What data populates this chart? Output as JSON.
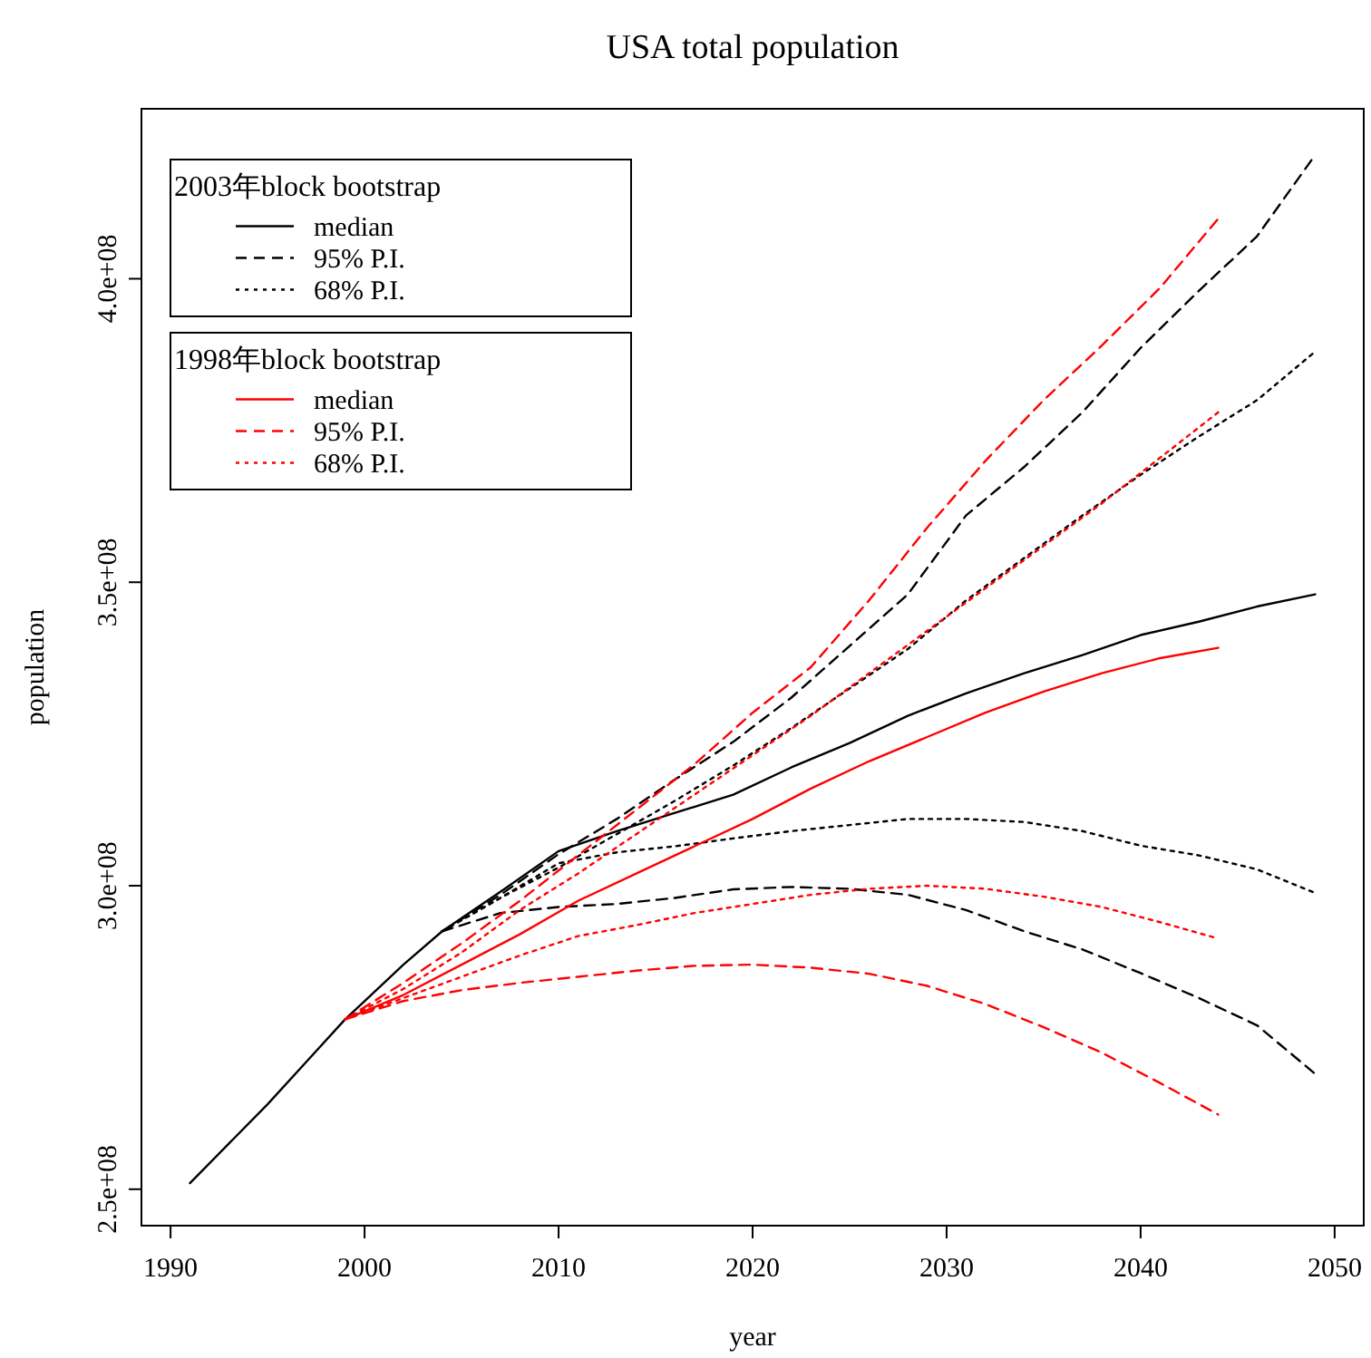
{
  "chart_data": {
    "type": "line",
    "title": "USA total population",
    "xlabel": "year",
    "ylabel": "population",
    "xlim": [
      1988.5,
      2051.5
    ],
    "ylim": [
      244000000,
      428000000
    ],
    "xticks": [
      1990,
      2000,
      2010,
      2020,
      2030,
      2040,
      2050
    ],
    "yticks": [
      {
        "value": 250000000,
        "label": "2.5e+08"
      },
      {
        "value": 300000000,
        "label": "3.0e+08"
      },
      {
        "value": 350000000,
        "label": "3.5e+08"
      },
      {
        "value": 400000000,
        "label": "4.0e+08"
      }
    ],
    "grid": false,
    "marker": "none",
    "legend": "top left",
    "legend_title": [
      "2003年block bootstrap",
      "1998年block bootstrap"
    ],
    "series": [
      {
        "name": "median",
        "color": "#000000",
        "line_style": "solid",
        "x": [
          1991,
          1993,
          1995,
          1997,
          1999,
          2000,
          2002,
          2004,
          2007,
          2010,
          2013,
          2016,
          2019,
          2022,
          2025,
          2028,
          2031,
          2034,
          2037,
          2040,
          2043,
          2046,
          2049
        ],
        "values": [
          251000000,
          257500000,
          264000000,
          271000000,
          278000000,
          281000000,
          287000000,
          292500000,
          299000000,
          305700000,
          309000000,
          312000000,
          315000000,
          319500000,
          323500000,
          328000000,
          331700000,
          335000000,
          338000000,
          341300000,
          343500000,
          346000000,
          348000000
        ]
      },
      {
        "name": "95% P.I.",
        "color": "#000000",
        "line_style": "dashed",
        "x": [
          2004,
          2007,
          2010,
          2013,
          2016,
          2019,
          2022,
          2025,
          2028,
          2031,
          2034,
          2037,
          2040,
          2043,
          2046,
          2049
        ],
        "values": [
          292500000,
          298500000,
          305200000,
          311000000,
          317500000,
          323700000,
          331000000,
          339500000,
          348000000,
          361000000,
          369000000,
          378000000,
          388600000,
          398000000,
          407000000,
          420400000
        ]
      },
      {
        "color": "#000000",
        "line_style": "dashed",
        "x": [
          2004,
          2007,
          2010,
          2013,
          2016,
          2019,
          2022,
          2025,
          2028,
          2031,
          2034,
          2037,
          2040,
          2043,
          2046,
          2049
        ],
        "values": [
          292500000,
          295500000,
          296500000,
          297000000,
          298000000,
          299400000,
          299800000,
          299500000,
          298500000,
          296000000,
          292500000,
          289500000,
          285600000,
          281500000,
          277000000,
          269000000
        ]
      },
      {
        "name": "68% P.I.",
        "color": "#000000",
        "line_style": "dotted",
        "x": [
          2004,
          2007,
          2010,
          2013,
          2016,
          2019,
          2022,
          2025,
          2028,
          2031,
          2034,
          2037,
          2040,
          2043,
          2046,
          2049
        ],
        "values": [
          292500000,
          298000000,
          303000000,
          308500000,
          314000000,
          319800000,
          326000000,
          332500000,
          339000000,
          347000000,
          354000000,
          361000000,
          367700000,
          374000000,
          380000000,
          388000000
        ]
      },
      {
        "color": "#000000",
        "line_style": "dotted",
        "x": [
          2004,
          2007,
          2010,
          2013,
          2016,
          2019,
          2022,
          2025,
          2028,
          2031,
          2034,
          2037,
          2040,
          2043,
          2046,
          2049
        ],
        "values": [
          292500000,
          298000000,
          303700000,
          305500000,
          306500000,
          307800000,
          309000000,
          310000000,
          311000000,
          311000000,
          310500000,
          309000000,
          306600000,
          305000000,
          302700000,
          298800000
        ]
      },
      {
        "name": "median",
        "color": "#ff0000",
        "line_style": "solid",
        "x": [
          1999,
          2002,
          2005,
          2008,
          2011,
          2014,
          2017,
          2020,
          2023,
          2026,
          2029,
          2032,
          2035,
          2038,
          2041,
          2044
        ],
        "values": [
          278000000,
          282000000,
          287000000,
          292000000,
          297500000,
          302000000,
          306500000,
          311000000,
          316000000,
          320500000,
          324500000,
          328500000,
          332000000,
          335000000,
          337500000,
          339200000
        ]
      },
      {
        "name": "95% P.I.",
        "color": "#ff0000",
        "line_style": "dashed",
        "x": [
          1999,
          2002,
          2005,
          2008,
          2011,
          2014,
          2017,
          2020,
          2023,
          2026,
          2029,
          2032,
          2035,
          2038,
          2041,
          2044
        ],
        "values": [
          278000000,
          284000000,
          290500000,
          297500000,
          305000000,
          312500000,
          320000000,
          328500000,
          336000000,
          347000000,
          359000000,
          370000000,
          380000000,
          389000000,
          398500000,
          409900000
        ]
      },
      {
        "color": "#ff0000",
        "line_style": "dashed",
        "x": [
          1999,
          2002,
          2005,
          2008,
          2011,
          2014,
          2017,
          2020,
          2023,
          2026,
          2029,
          2032,
          2035,
          2038,
          2041,
          2044
        ],
        "values": [
          278000000,
          281000000,
          282800000,
          284000000,
          285000000,
          286000000,
          286800000,
          287000000,
          286500000,
          285500000,
          283500000,
          280500000,
          276700000,
          272500000,
          267500000,
          262300000
        ]
      },
      {
        "name": "68% P.I.",
        "color": "#ff0000",
        "line_style": "dotted",
        "x": [
          1999,
          2002,
          2005,
          2008,
          2011,
          2014,
          2017,
          2020,
          2023,
          2026,
          2029,
          2032,
          2035,
          2038,
          2041,
          2044
        ],
        "values": [
          278000000,
          283000000,
          289000000,
          296000000,
          302000000,
          308500000,
          315000000,
          321500000,
          328000000,
          335000000,
          342000000,
          349000000,
          356000000,
          363000000,
          370500000,
          378000000
        ]
      },
      {
        "color": "#ff0000",
        "line_style": "dotted",
        "x": [
          1999,
          2002,
          2005,
          2008,
          2011,
          2014,
          2017,
          2020,
          2023,
          2026,
          2029,
          2032,
          2035,
          2038,
          2041,
          2044
        ],
        "values": [
          278000000,
          281500000,
          285000000,
          288500000,
          291700000,
          293500000,
          295500000,
          297000000,
          298500000,
          299500000,
          300000000,
          299500000,
          298200000,
          296500000,
          294000000,
          291300000
        ]
      }
    ]
  }
}
